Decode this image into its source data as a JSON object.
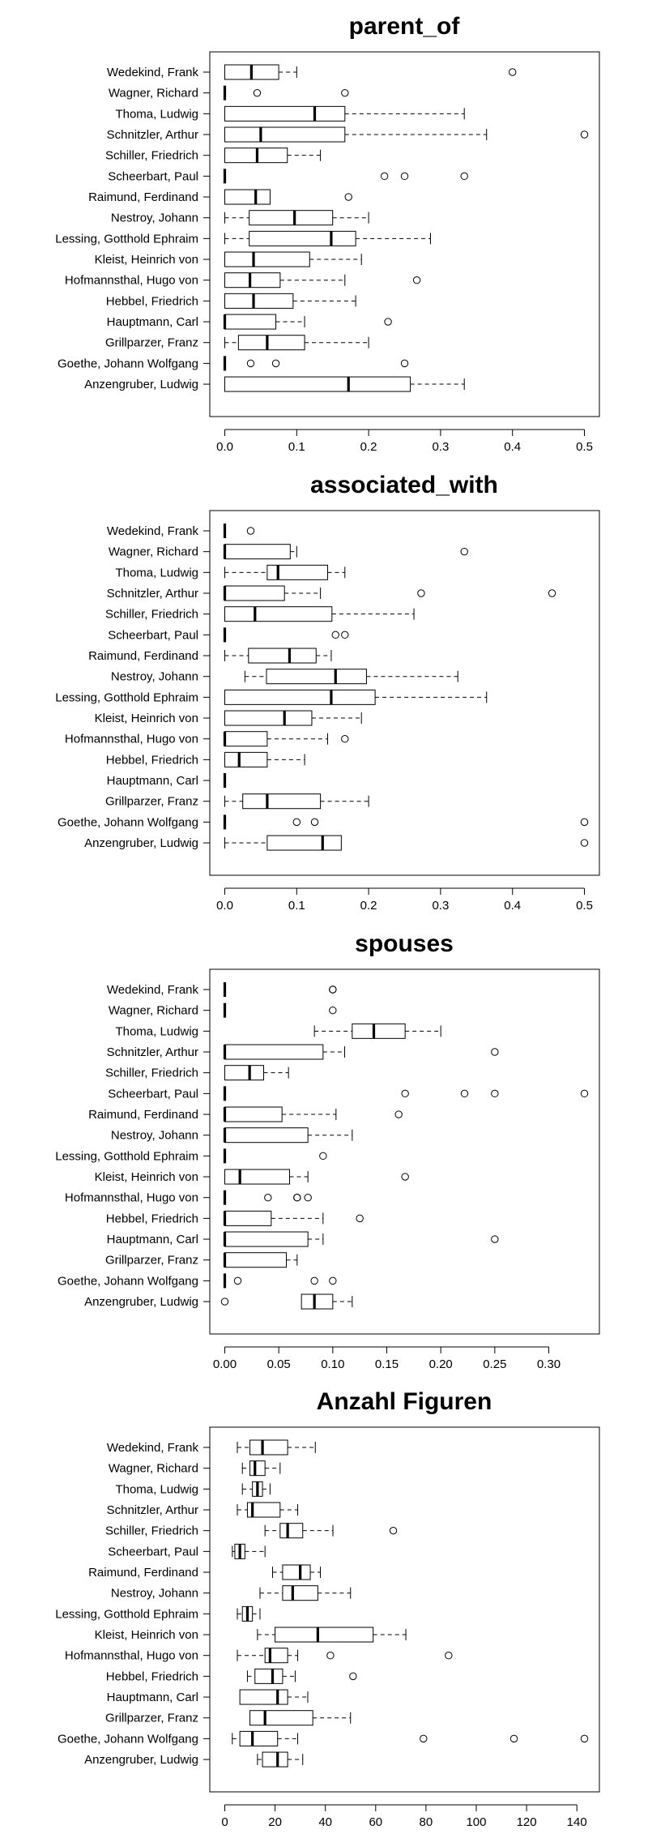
{
  "chart_data": [
    {
      "type": "boxplot",
      "title": "parent_of",
      "orientation": "horizontal",
      "xlim": [
        0,
        0.5
      ],
      "xticks": [
        0.0,
        0.1,
        0.2,
        0.3,
        0.4,
        0.5
      ],
      "xtick_labels": [
        "0.0",
        "0.1",
        "0.2",
        "0.3",
        "0.4",
        "0.5"
      ],
      "categories": [
        "Wedekind, Frank",
        "Wagner, Richard",
        "Thoma, Ludwig",
        "Schnitzler, Arthur",
        "Schiller, Friedrich",
        "Scheerbart, Paul",
        "Raimund, Ferdinand",
        "Nestroy, Johann",
        "Lessing, Gotthold Ephraim",
        "Kleist, Heinrich von",
        "Hofmannsthal, Hugo von",
        "Hebbel, Friedrich",
        "Hauptmann, Carl",
        "Grillparzer, Franz",
        "Goethe, Johann Wolfgang",
        "Anzengruber, Ludwig"
      ],
      "boxes": [
        {
          "wmin": 0.0,
          "q1": 0.0,
          "median": 0.037,
          "q3": 0.075,
          "wmax": 0.1,
          "outliers": [
            0.4
          ]
        },
        {
          "wmin": 0.0,
          "q1": 0.0,
          "median": 0.0,
          "q3": 0.0,
          "wmax": 0.0,
          "outliers": [
            0.045,
            0.167
          ]
        },
        {
          "wmin": 0.0,
          "q1": 0.0,
          "median": 0.125,
          "q3": 0.167,
          "wmax": 0.333,
          "outliers": []
        },
        {
          "wmin": 0.0,
          "q1": 0.0,
          "median": 0.05,
          "q3": 0.167,
          "wmax": 0.364,
          "outliers": [
            0.5
          ]
        },
        {
          "wmin": 0.0,
          "q1": 0.0,
          "median": 0.045,
          "q3": 0.087,
          "wmax": 0.133,
          "outliers": []
        },
        {
          "wmin": 0.0,
          "q1": 0.0,
          "median": 0.0,
          "q3": 0.0,
          "wmax": 0.0,
          "outliers": [
            0.222,
            0.25,
            0.333
          ]
        },
        {
          "wmin": 0.0,
          "q1": 0.0,
          "median": 0.043,
          "q3": 0.063,
          "wmax": 0.063,
          "outliers": [
            0.172
          ]
        },
        {
          "wmin": 0.0,
          "q1": 0.034,
          "median": 0.097,
          "q3": 0.15,
          "wmax": 0.2,
          "outliers": []
        },
        {
          "wmin": 0.0,
          "q1": 0.034,
          "median": 0.148,
          "q3": 0.182,
          "wmax": 0.286,
          "outliers": []
        },
        {
          "wmin": 0.0,
          "q1": 0.0,
          "median": 0.04,
          "q3": 0.118,
          "wmax": 0.19,
          "outliers": []
        },
        {
          "wmin": 0.0,
          "q1": 0.0,
          "median": 0.035,
          "q3": 0.077,
          "wmax": 0.167,
          "outliers": [
            0.267
          ]
        },
        {
          "wmin": 0.0,
          "q1": 0.0,
          "median": 0.04,
          "q3": 0.095,
          "wmax": 0.182,
          "outliers": []
        },
        {
          "wmin": 0.0,
          "q1": 0.0,
          "median": 0.0,
          "q3": 0.071,
          "wmax": 0.111,
          "outliers": [
            0.227
          ]
        },
        {
          "wmin": 0.0,
          "q1": 0.019,
          "median": 0.059,
          "q3": 0.111,
          "wmax": 0.2,
          "outliers": []
        },
        {
          "wmin": 0.0,
          "q1": 0.0,
          "median": 0.0,
          "q3": 0.0,
          "wmax": 0.0,
          "outliers": [
            0.036,
            0.071,
            0.25
          ]
        },
        {
          "wmin": 0.0,
          "q1": 0.0,
          "median": 0.172,
          "q3": 0.258,
          "wmax": 0.333,
          "outliers": []
        }
      ]
    },
    {
      "type": "boxplot",
      "title": "associated_with",
      "orientation": "horizontal",
      "xlim": [
        0,
        0.5
      ],
      "xticks": [
        0.0,
        0.1,
        0.2,
        0.3,
        0.4,
        0.5
      ],
      "xtick_labels": [
        "0.0",
        "0.1",
        "0.2",
        "0.3",
        "0.4",
        "0.5"
      ],
      "categories": [
        "Wedekind, Frank",
        "Wagner, Richard",
        "Thoma, Ludwig",
        "Schnitzler, Arthur",
        "Schiller, Friedrich",
        "Scheerbart, Paul",
        "Raimund, Ferdinand",
        "Nestroy, Johann",
        "Lessing, Gotthold Ephraim",
        "Kleist, Heinrich von",
        "Hofmannsthal, Hugo von",
        "Hebbel, Friedrich",
        "Hauptmann, Carl",
        "Grillparzer, Franz",
        "Goethe, Johann Wolfgang",
        "Anzengruber, Ludwig"
      ],
      "boxes": [
        {
          "wmin": 0.0,
          "q1": 0.0,
          "median": 0.0,
          "q3": 0.0,
          "wmax": 0.0,
          "outliers": [
            0.036
          ]
        },
        {
          "wmin": 0.0,
          "q1": 0.0,
          "median": 0.0,
          "q3": 0.091,
          "wmax": 0.1,
          "outliers": [
            0.333
          ]
        },
        {
          "wmin": 0.0,
          "q1": 0.059,
          "median": 0.074,
          "q3": 0.143,
          "wmax": 0.167,
          "outliers": []
        },
        {
          "wmin": 0.0,
          "q1": 0.0,
          "median": 0.0,
          "q3": 0.083,
          "wmax": 0.133,
          "outliers": [
            0.273,
            0.455
          ]
        },
        {
          "wmin": 0.0,
          "q1": 0.0,
          "median": 0.042,
          "q3": 0.149,
          "wmax": 0.263,
          "outliers": []
        },
        {
          "wmin": 0.0,
          "q1": 0.0,
          "median": 0.0,
          "q3": 0.0,
          "wmax": 0.0,
          "outliers": [
            0.154,
            0.167
          ]
        },
        {
          "wmin": 0.0,
          "q1": 0.033,
          "median": 0.09,
          "q3": 0.127,
          "wmax": 0.148,
          "outliers": []
        },
        {
          "wmin": 0.028,
          "q1": 0.058,
          "median": 0.154,
          "q3": 0.197,
          "wmax": 0.324,
          "outliers": []
        },
        {
          "wmin": 0.0,
          "q1": 0.0,
          "median": 0.148,
          "q3": 0.209,
          "wmax": 0.364,
          "outliers": []
        },
        {
          "wmin": 0.0,
          "q1": 0.0,
          "median": 0.083,
          "q3": 0.121,
          "wmax": 0.19,
          "outliers": []
        },
        {
          "wmin": 0.0,
          "q1": 0.0,
          "median": 0.0,
          "q3": 0.059,
          "wmax": 0.143,
          "outliers": [
            0.167
          ]
        },
        {
          "wmin": 0.0,
          "q1": 0.0,
          "median": 0.02,
          "q3": 0.059,
          "wmax": 0.111,
          "outliers": []
        },
        {
          "wmin": 0.0,
          "q1": 0.0,
          "median": 0.0,
          "q3": 0.0,
          "wmax": 0.0,
          "outliers": []
        },
        {
          "wmin": 0.0,
          "q1": 0.025,
          "median": 0.059,
          "q3": 0.133,
          "wmax": 0.2,
          "outliers": []
        },
        {
          "wmin": 0.0,
          "q1": 0.0,
          "median": 0.0,
          "q3": 0.0,
          "wmax": 0.0,
          "outliers": [
            0.1,
            0.125,
            0.5
          ]
        },
        {
          "wmin": 0.0,
          "q1": 0.059,
          "median": 0.136,
          "q3": 0.162,
          "wmax": 0.162,
          "outliers": [
            0.5
          ]
        }
      ]
    },
    {
      "type": "boxplot",
      "title": "spouses",
      "orientation": "horizontal",
      "xlim": [
        0,
        0.333
      ],
      "xticks": [
        0.0,
        0.05,
        0.1,
        0.15,
        0.2,
        0.25,
        0.3
      ],
      "xtick_labels": [
        "0.00",
        "0.05",
        "0.10",
        "0.15",
        "0.20",
        "0.25",
        "0.30"
      ],
      "categories": [
        "Wedekind, Frank",
        "Wagner, Richard",
        "Thoma, Ludwig",
        "Schnitzler, Arthur",
        "Schiller, Friedrich",
        "Scheerbart, Paul",
        "Raimund, Ferdinand",
        "Nestroy, Johann",
        "Lessing, Gotthold Ephraim",
        "Kleist, Heinrich von",
        "Hofmannsthal, Hugo von",
        "Hebbel, Friedrich",
        "Hauptmann, Carl",
        "Grillparzer, Franz",
        "Goethe, Johann Wolfgang",
        "Anzengruber, Ludwig"
      ],
      "boxes": [
        {
          "wmin": 0.0,
          "q1": 0.0,
          "median": 0.0,
          "q3": 0.0,
          "wmax": 0.0,
          "outliers": [
            0.1,
            0.1
          ]
        },
        {
          "wmin": 0.0,
          "q1": 0.0,
          "median": 0.0,
          "q3": 0.0,
          "wmax": 0.0,
          "outliers": [
            0.1
          ]
        },
        {
          "wmin": 0.083,
          "q1": 0.118,
          "median": 0.138,
          "q3": 0.167,
          "wmax": 0.2,
          "outliers": []
        },
        {
          "wmin": 0.0,
          "q1": 0.0,
          "median": 0.0,
          "q3": 0.091,
          "wmax": 0.111,
          "outliers": [
            0.25
          ]
        },
        {
          "wmin": 0.0,
          "q1": 0.0,
          "median": 0.023,
          "q3": 0.036,
          "wmax": 0.059,
          "outliers": []
        },
        {
          "wmin": 0.0,
          "q1": 0.0,
          "median": 0.0,
          "q3": 0.0,
          "wmax": 0.0,
          "outliers": [
            0.167,
            0.222,
            0.25,
            0.333
          ]
        },
        {
          "wmin": 0.0,
          "q1": 0.0,
          "median": 0.0,
          "q3": 0.053,
          "wmax": 0.103,
          "outliers": [
            0.161
          ]
        },
        {
          "wmin": 0.0,
          "q1": 0.0,
          "median": 0.0,
          "q3": 0.077,
          "wmax": 0.118,
          "outliers": []
        },
        {
          "wmin": 0.0,
          "q1": 0.0,
          "median": 0.0,
          "q3": 0.0,
          "wmax": 0.0,
          "outliers": [
            0.091
          ]
        },
        {
          "wmin": 0.0,
          "q1": 0.0,
          "median": 0.014,
          "q3": 0.06,
          "wmax": 0.077,
          "outliers": [
            0.167
          ]
        },
        {
          "wmin": 0.0,
          "q1": 0.0,
          "median": 0.0,
          "q3": 0.0,
          "wmax": 0.0,
          "outliers": [
            0.04,
            0.067,
            0.067,
            0.077
          ]
        },
        {
          "wmin": 0.0,
          "q1": 0.0,
          "median": 0.0,
          "q3": 0.043,
          "wmax": 0.091,
          "outliers": [
            0.125
          ]
        },
        {
          "wmin": 0.0,
          "q1": 0.0,
          "median": 0.0,
          "q3": 0.077,
          "wmax": 0.091,
          "outliers": [
            0.25
          ]
        },
        {
          "wmin": 0.0,
          "q1": 0.0,
          "median": 0.0,
          "q3": 0.057,
          "wmax": 0.067,
          "outliers": []
        },
        {
          "wmin": 0.0,
          "q1": 0.0,
          "median": 0.0,
          "q3": 0.0,
          "wmax": 0.0,
          "outliers": [
            0.012,
            0.083,
            0.1
          ]
        },
        {
          "wmin": 0.071,
          "q1": 0.071,
          "median": 0.083,
          "q3": 0.1,
          "wmax": 0.118,
          "outliers": [
            0.0
          ]
        }
      ]
    },
    {
      "type": "boxplot",
      "title": "Anzahl Figuren",
      "orientation": "horizontal",
      "xlim": [
        0,
        143
      ],
      "xticks": [
        0,
        20,
        40,
        60,
        80,
        100,
        120,
        140
      ],
      "xtick_labels": [
        "0",
        "20",
        "40",
        "60",
        "80",
        "100",
        "120",
        "140"
      ],
      "categories": [
        "Wedekind, Frank",
        "Wagner, Richard",
        "Thoma, Ludwig",
        "Schnitzler, Arthur",
        "Schiller, Friedrich",
        "Scheerbart, Paul",
        "Raimund, Ferdinand",
        "Nestroy, Johann",
        "Lessing, Gotthold Ephraim",
        "Kleist, Heinrich von",
        "Hofmannsthal, Hugo von",
        "Hebbel, Friedrich",
        "Hauptmann, Carl",
        "Grillparzer, Franz",
        "Goethe, Johann Wolfgang",
        "Anzengruber, Ludwig"
      ],
      "boxes": [
        {
          "wmin": 5,
          "q1": 10,
          "median": 15,
          "q3": 25,
          "wmax": 36,
          "outliers": []
        },
        {
          "wmin": 7,
          "q1": 10,
          "median": 12,
          "q3": 16,
          "wmax": 22,
          "outliers": []
        },
        {
          "wmin": 7,
          "q1": 11,
          "median": 13,
          "q3": 15,
          "wmax": 18,
          "outliers": []
        },
        {
          "wmin": 5,
          "q1": 9,
          "median": 11,
          "q3": 22,
          "wmax": 29,
          "outliers": []
        },
        {
          "wmin": 16,
          "q1": 22,
          "median": 25,
          "q3": 31,
          "wmax": 43,
          "outliers": [
            67
          ]
        },
        {
          "wmin": 3,
          "q1": 4,
          "median": 6,
          "q3": 8,
          "wmax": 16,
          "outliers": []
        },
        {
          "wmin": 19,
          "q1": 23,
          "median": 30,
          "q3": 34,
          "wmax": 38,
          "outliers": []
        },
        {
          "wmin": 14,
          "q1": 23,
          "median": 27,
          "q3": 37,
          "wmax": 50,
          "outliers": []
        },
        {
          "wmin": 5,
          "q1": 7,
          "median": 9,
          "q3": 11,
          "wmax": 14,
          "outliers": []
        },
        {
          "wmin": 13,
          "q1": 20,
          "median": 37,
          "q3": 59,
          "wmax": 72,
          "outliers": []
        },
        {
          "wmin": 5,
          "q1": 16,
          "median": 18,
          "q3": 25,
          "wmax": 29,
          "outliers": [
            42,
            89
          ]
        },
        {
          "wmin": 9,
          "q1": 12,
          "median": 19,
          "q3": 23,
          "wmax": 28,
          "outliers": [
            51
          ]
        },
        {
          "wmin": 6,
          "q1": 6,
          "median": 21,
          "q3": 25,
          "wmax": 33,
          "outliers": []
        },
        {
          "wmin": 10,
          "q1": 10,
          "median": 16,
          "q3": 35,
          "wmax": 50,
          "outliers": []
        },
        {
          "wmin": 3,
          "q1": 6,
          "median": 11,
          "q3": 21,
          "wmax": 29,
          "outliers": [
            79,
            115,
            143
          ]
        },
        {
          "wmin": 13,
          "q1": 15,
          "median": 21,
          "q3": 25,
          "wmax": 31,
          "outliers": []
        }
      ]
    }
  ]
}
